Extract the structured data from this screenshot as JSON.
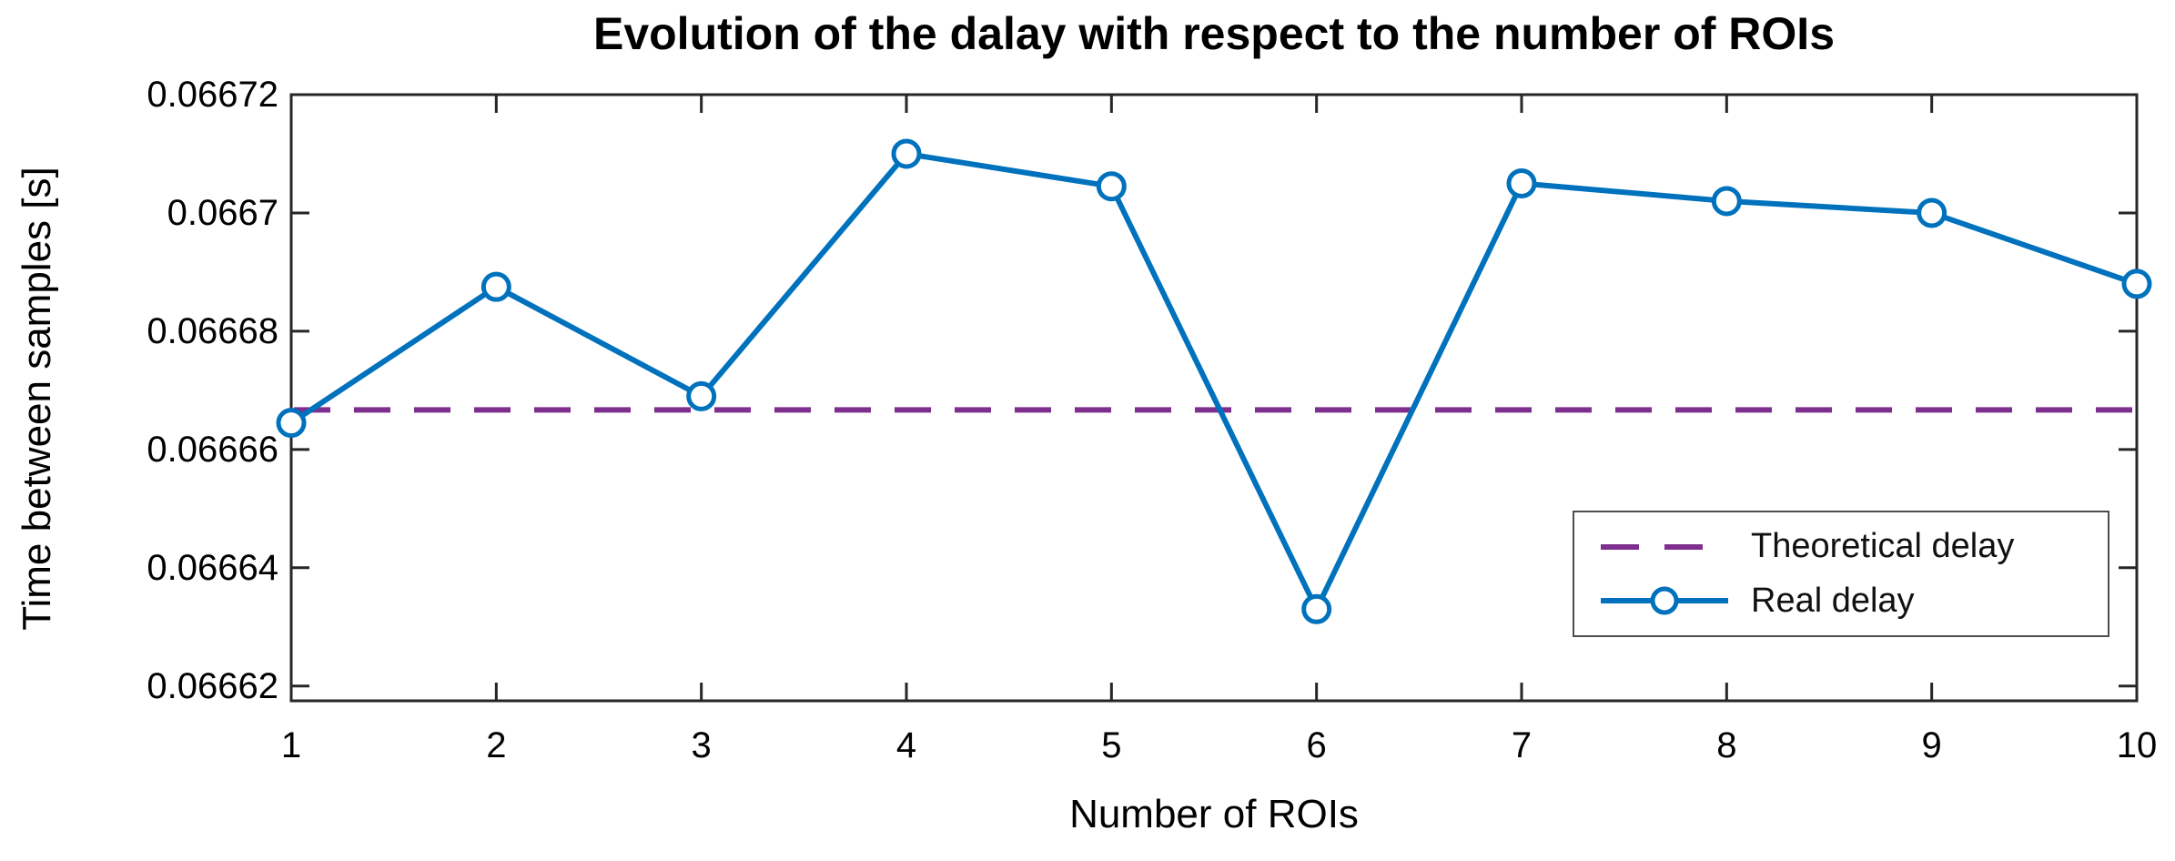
{
  "chart_data": {
    "type": "line",
    "title": "Evolution of the dalay with respect to the number of ROIs",
    "xlabel": "Number of ROIs",
    "ylabel": "Time between samples [s]",
    "x": [
      1,
      2,
      3,
      4,
      5,
      6,
      7,
      8,
      9,
      10
    ],
    "series": [
      {
        "name": "Theoretical delay",
        "kind": "hline",
        "value": 0.0666667,
        "color": "#7E2F8E",
        "line_style": "dashed"
      },
      {
        "name": "Real delay",
        "kind": "line-with-circle-markers",
        "color": "#0072BD",
        "line_style": "solid",
        "values": [
          0.0666645,
          0.0666875,
          0.066669,
          0.06671,
          0.0667045,
          0.066633,
          0.066705,
          0.066702,
          0.0667,
          0.066688
        ]
      }
    ],
    "xlim": [
      1,
      10
    ],
    "ylim": [
      0.0666175,
      0.06672
    ],
    "x_ticks": [
      {
        "value": 1,
        "label": "1"
      },
      {
        "value": 2,
        "label": "2"
      },
      {
        "value": 3,
        "label": "3"
      },
      {
        "value": 4,
        "label": "4"
      },
      {
        "value": 5,
        "label": "5"
      },
      {
        "value": 6,
        "label": "6"
      },
      {
        "value": 7,
        "label": "7"
      },
      {
        "value": 8,
        "label": "8"
      },
      {
        "value": 9,
        "label": "9"
      },
      {
        "value": 10,
        "label": "10"
      }
    ],
    "y_ticks": [
      {
        "value": 0.06662,
        "label": "0.06662"
      },
      {
        "value": 0.06664,
        "label": "0.06664"
      },
      {
        "value": 0.06666,
        "label": "0.06666"
      },
      {
        "value": 0.06668,
        "label": "0.06668"
      },
      {
        "value": 0.0667,
        "label": "0.0667"
      },
      {
        "value": 0.06672,
        "label": "0.06672"
      }
    ],
    "grid": false,
    "legend": {
      "position": "inside-lower-right",
      "entries": [
        "Theoretical delay",
        "Real delay"
      ]
    },
    "colors": {
      "axis": "#262626",
      "text": "#000000",
      "background": "#ffffff"
    }
  }
}
